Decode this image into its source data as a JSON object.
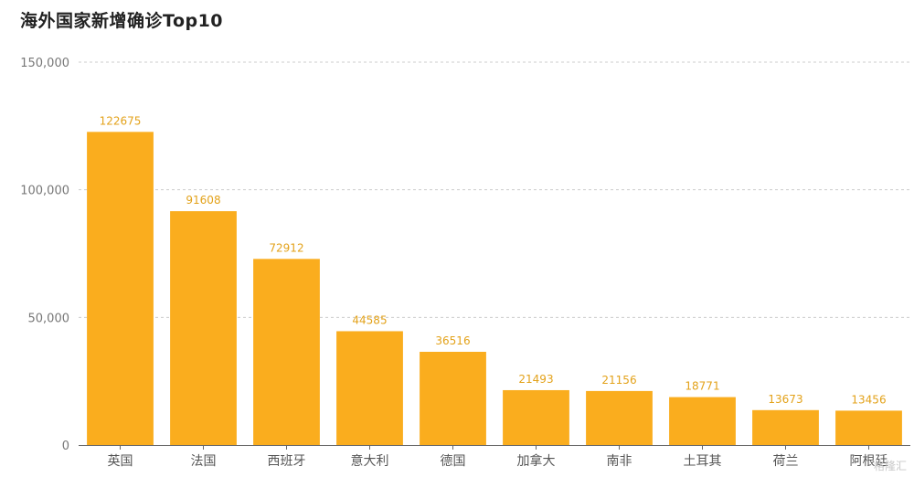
{
  "title": "海外国家新增确诊Top10",
  "watermark": "格隆汇",
  "colors": {
    "bar": "#FAAD1E",
    "label": "#E3A21A",
    "grid": "#cccccc",
    "axis_text": "#777777",
    "axis_line": "#666666"
  },
  "chart_data": {
    "type": "bar",
    "title": "海外国家新增确诊Top10",
    "xlabel": "",
    "ylabel": "",
    "categories": [
      "英国",
      "法国",
      "西班牙",
      "意大利",
      "德国",
      "加拿大",
      "南非",
      "土耳其",
      "荷兰",
      "阿根廷"
    ],
    "values": [
      122675,
      91608,
      72912,
      44585,
      36516,
      21493,
      21156,
      18771,
      13673,
      13456
    ],
    "ylim": [
      0,
      150000
    ],
    "yticks": [
      0,
      50000,
      100000,
      150000
    ],
    "ytick_labels": [
      "0",
      "50,000",
      "100,000",
      "150,000"
    ],
    "grid": true,
    "legend": "none"
  }
}
